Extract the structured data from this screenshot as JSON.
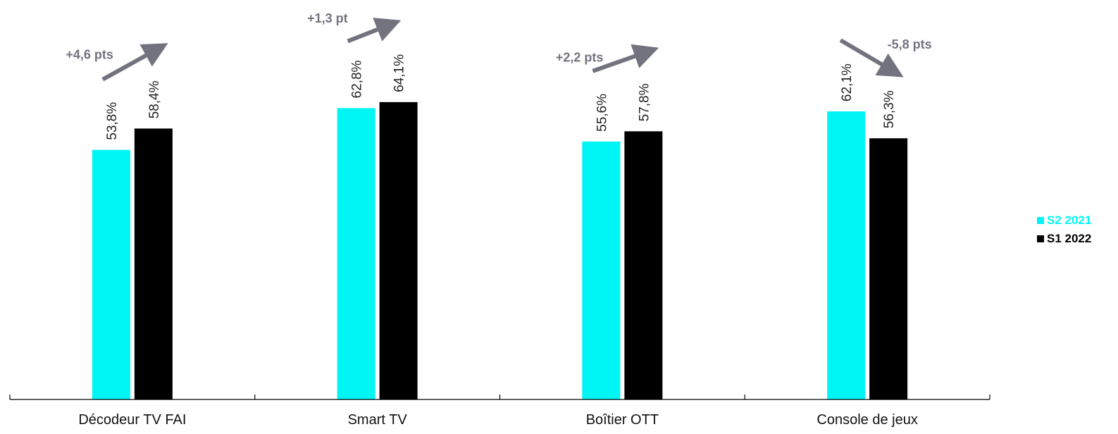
{
  "chart_data": {
    "type": "bar",
    "categories": [
      "Décodeur TV FAI",
      "Smart TV",
      "Boîtier OTT",
      "Console de jeux"
    ],
    "series": [
      {
        "name": "S2 2021",
        "values": [
          53.8,
          62.8,
          55.6,
          62.1
        ],
        "labels": [
          "53,8%",
          "62,8%",
          "55,6%",
          "62,1%"
        ],
        "color": "#00f5f5"
      },
      {
        "name": "S1 2022",
        "values": [
          58.4,
          64.1,
          57.8,
          56.3
        ],
        "labels": [
          "58,4%",
          "64,1%",
          "57,8%",
          "56,3%"
        ],
        "color": "#000000"
      }
    ],
    "annotations": [
      {
        "category": "Décodeur TV FAI",
        "text": "+4,6 pts",
        "direction": "up"
      },
      {
        "category": "Smart TV",
        "text": "+1,3 pt",
        "direction": "up"
      },
      {
        "category": "Boîtier OTT",
        "text": "+2,2 pts",
        "direction": "up"
      },
      {
        "category": "Console de jeux",
        "text": "-5,8 pts",
        "direction": "down"
      }
    ],
    "annotation_color": "#737380",
    "ylim": [
      0,
      100
    ],
    "grid": false,
    "legend_position": "right"
  }
}
